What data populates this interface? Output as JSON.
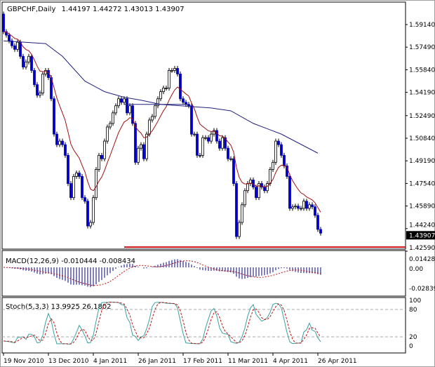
{
  "header": {
    "symbol": "GBPCHF,Daily",
    "open": "1.44197",
    "high": "1.44272",
    "low": "1.43013",
    "close": "1.43907"
  },
  "colors": {
    "bear": "#0000c0",
    "bull": "#ffffff",
    "fast_ma": "#a01010",
    "slow_ma": "#202080",
    "support": "#d01010",
    "stoch_main": "#3aa0a0",
    "stoch_signal": "#c01010",
    "macd_hist": "#000080"
  },
  "chart_data": [
    {
      "type": "candlestick",
      "title": "GBPCHF,Daily",
      "price_axis_ticks": [
        "1.59140",
        "1.57490",
        "1.55840",
        "1.54190",
        "1.52490",
        "1.50840",
        "1.49190",
        "1.47540",
        "1.45890",
        "1.44240",
        "1.42590"
      ],
      "current_price_label": "1.43907",
      "ylim": [
        1.4259,
        1.607
      ],
      "first_open": 1.5991,
      "closes": [
        1.5862,
        1.5837,
        1.5795,
        1.5759,
        1.5733,
        1.5785,
        1.5682,
        1.5604,
        1.5641,
        1.5682,
        1.5579,
        1.5475,
        1.5398,
        1.5414,
        1.5553,
        1.5579,
        1.5527,
        1.5372,
        1.5114,
        1.5037,
        1.5063,
        1.5037,
        1.4959,
        1.4753,
        1.465,
        1.4805,
        1.483,
        1.4805,
        1.465,
        1.4624,
        1.4443,
        1.4469,
        1.465,
        1.4856,
        1.4959,
        1.4934,
        1.5063,
        1.5166,
        1.5192,
        1.5269,
        1.5321,
        1.5372,
        1.5346,
        1.5372,
        1.5269,
        1.5321,
        1.5192,
        1.4908,
        1.5011,
        1.5037,
        1.4934,
        1.5114,
        1.5217,
        1.5243,
        1.5321,
        1.5372,
        1.5424,
        1.545,
        1.545,
        1.5579,
        1.5579,
        1.5594,
        1.5553,
        1.5372,
        1.5346,
        1.5331,
        1.5321,
        1.5114,
        1.5114,
        1.4959,
        1.4959,
        1.5088,
        1.5088,
        1.5063,
        1.5114,
        1.514,
        1.5063,
        1.5011,
        1.5088,
        1.5011,
        1.4934,
        1.4934,
        1.4753,
        1.4366,
        1.4469,
        1.4598,
        1.4701,
        1.4753,
        1.4779,
        1.4727,
        1.465,
        1.4753,
        1.4727,
        1.4701,
        1.4753,
        1.4856,
        1.4908,
        1.5063,
        1.5037,
        1.4959,
        1.4882,
        1.4805,
        1.4572,
        1.4583,
        1.4588,
        1.4572,
        1.4572,
        1.4624,
        1.4572,
        1.4598,
        1.4583,
        1.4521,
        1.4418,
        1.43907
      ],
      "slow_ma_points": [
        [
          0,
          1.5795
        ],
        [
          15,
          1.5775
        ],
        [
          21,
          1.5682
        ],
        [
          29,
          1.5501
        ],
        [
          36,
          1.5424
        ],
        [
          43,
          1.5383
        ],
        [
          49,
          1.5362
        ],
        [
          56,
          1.5331
        ],
        [
          74,
          1.5305
        ],
        [
          81,
          1.5284
        ],
        [
          89,
          1.5192
        ],
        [
          99,
          1.5114
        ],
        [
          112,
          1.4975
        ]
      ],
      "horizontal_line": {
        "from_bar": 43,
        "to_bar": 66,
        "price": 1.5331
      },
      "support_level": 1.4289,
      "x_tick_labels": [
        "19 Nov 2010",
        "13 Dec 2010",
        "4 Jan 2011",
        "26 Jan 2011",
        "17 Feb 2011",
        "11 Mar 2011",
        "4 Apr 2011",
        "26 Apr 2011"
      ],
      "x_tick_bars": [
        0,
        16,
        32,
        48,
        64,
        80,
        96,
        112
      ]
    },
    {
      "type": "bar",
      "title": "MACD(12,26,9) -0.010444 -0.008434",
      "y_ticks": [
        "0.014285",
        "0.00",
        "-0.02839"
      ],
      "ylim": [
        -0.031,
        0.024
      ]
    },
    {
      "type": "line",
      "title": "Stoch(5,3,3) 13.9925 26.1802",
      "y_ticks": [
        "100",
        "80",
        "20",
        "0"
      ],
      "levels": [
        80,
        20
      ],
      "ylim": [
        0,
        100
      ]
    }
  ]
}
